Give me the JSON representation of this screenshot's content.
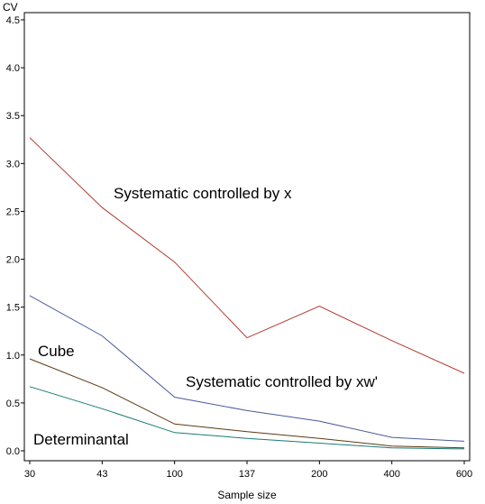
{
  "chart_data": {
    "type": "line",
    "title": "",
    "xlabel": "Sample size",
    "ylabel": "CV",
    "categories": [
      "30",
      "43",
      "100",
      "137",
      "200",
      "400",
      "600"
    ],
    "ylim": [
      0,
      4.5
    ],
    "yticks": [
      "0.0",
      "0.5",
      "1.0",
      "1.5",
      "2.0",
      "2.5",
      "3.0",
      "3.5",
      "4.0",
      "4.5"
    ],
    "grid": false,
    "series": [
      {
        "name": "Systematic controlled by x",
        "color": "#b03a2e",
        "values": [
          3.27,
          2.54,
          1.97,
          1.18,
          1.51,
          1.15,
          0.81
        ]
      },
      {
        "name": "Systematic controlled by xw'",
        "color": "#4b5a9a",
        "values": [
          1.62,
          1.2,
          0.56,
          0.42,
          0.31,
          0.14,
          0.1
        ]
      },
      {
        "name": "Cube",
        "color": "#5a3a12",
        "values": [
          0.96,
          0.66,
          0.28,
          0.2,
          0.13,
          0.05,
          0.03
        ]
      },
      {
        "name": "Determinantal",
        "color": "#1a7a72",
        "values": [
          0.67,
          0.44,
          0.19,
          0.13,
          0.08,
          0.03,
          0.02
        ]
      }
    ]
  }
}
